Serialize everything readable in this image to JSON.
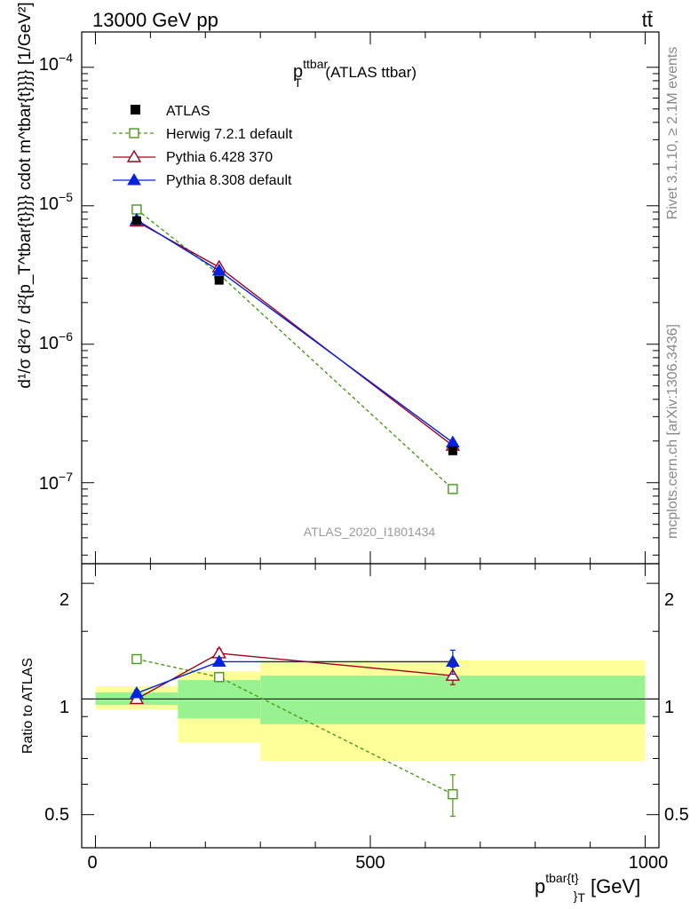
{
  "header": {
    "left": "13000 GeV pp",
    "right": "tt̄"
  },
  "side_labels": {
    "rivet": "Rivet 3.1.10, ≥ 2.1M events",
    "mcplots": "mcplots.cern.ch [arXiv:1306.3436]"
  },
  "main_title": {
    "base": "p",
    "sup": "ttbar",
    "sub": "T",
    "rest": " (ATLAS ttbar)"
  },
  "analysis_id": "ATLAS_2020_I1801434",
  "y_axis_main": {
    "label": "d¹/σ d²σ / d²{p_T^tbar{t}}}} cdot m^tbar{t}}}} [1/GeV²]",
    "tick_labels": [
      {
        "base": "10",
        "exp": "−4",
        "value": 0.0001
      },
      {
        "base": "10",
        "exp": "−5",
        "value": 1e-05
      },
      {
        "base": "10",
        "exp": "−6",
        "value": 1e-06
      },
      {
        "base": "10",
        "exp": "−7",
        "value": 1e-07
      }
    ]
  },
  "y_axis_ratio": {
    "label": "Ratio to ATLAS",
    "tick_labels": [
      {
        "text": "2",
        "value": 2
      },
      {
        "text": "1",
        "value": 1
      },
      {
        "text": "0.5",
        "value": 0.5
      }
    ]
  },
  "x_axis": {
    "label_base": "p",
    "label_sup": "tbar{t}",
    "label_sub": "}",
    "label_sub2": "T",
    "label_unit": " [GeV]",
    "tick_labels": [
      {
        "text": "0",
        "value": 0
      },
      {
        "text": "500",
        "value": 500
      },
      {
        "text": "1000",
        "value": 1000
      }
    ]
  },
  "chart_data": [
    {
      "panel": "main",
      "type": "line",
      "title": "p_T^ttbar (ATLAS ttbar)",
      "xlabel": "p^tbar{t}}_T [GeV]",
      "ylabel": "d¹/σ d²σ / d²{p_T^tbar{t}}}} cdot m^tbar{t}}}} [1/GeV²]",
      "xlim": [
        -25,
        1025
      ],
      "ylim": [
        2.6e-08,
        0.00018
      ],
      "yscale": "log",
      "legend_position": "top-left",
      "series": [
        {
          "name": "ATLAS",
          "style": "data",
          "color": "#000000",
          "x": [
            75,
            225,
            650
          ],
          "y": [
            7.8e-06,
            2.9e-06,
            1.7e-07
          ],
          "err": [
            0.05,
            0.05,
            0.05
          ]
        },
        {
          "name": "Herwig 7.2.1 default",
          "style": "open-square-dashed",
          "color": "#4a9a1a",
          "x": [
            75,
            225,
            650
          ],
          "y": [
            9.4e-06,
            3.2e-06,
            9e-08
          ],
          "err": [
            0.02,
            0.03,
            0.08
          ]
        },
        {
          "name": "Pythia 6.428 370",
          "style": "open-triangle",
          "color": "#a0001e",
          "x": [
            75,
            225,
            650
          ],
          "y": [
            7.7e-06,
            3.6e-06,
            1.85e-07
          ],
          "err": [
            0.02,
            0.03,
            0.05
          ]
        },
        {
          "name": "Pythia 8.308 default",
          "style": "filled-triangle",
          "color": "#0022dd",
          "x": [
            75,
            225,
            650
          ],
          "y": [
            7.9e-06,
            3.4e-06,
            1.95e-07
          ],
          "err": [
            0.02,
            0.03,
            0.09
          ]
        }
      ]
    },
    {
      "panel": "ratio",
      "type": "line",
      "xlabel": "p^tbar{t}}_T [GeV]",
      "ylabel": "Ratio to ATLAS",
      "xlim": [
        -25,
        1025
      ],
      "ylim": [
        0.41,
        2.25
      ],
      "yscale": "log",
      "bands": [
        {
          "x0": 0,
          "x1": 150,
          "yellow": [
            0.94,
            1.08
          ],
          "green": [
            0.965,
            1.04
          ]
        },
        {
          "x0": 150,
          "x1": 300,
          "yellow": [
            0.77,
            1.18
          ],
          "green": [
            0.89,
            1.12
          ]
        },
        {
          "x0": 300,
          "x1": 1000,
          "yellow": [
            0.69,
            1.26
          ],
          "green": [
            0.86,
            1.15
          ]
        }
      ],
      "series": [
        {
          "name": "Herwig 7.2.1 default",
          "x": [
            75,
            225,
            650
          ],
          "y": [
            1.27,
            1.14,
            0.565
          ],
          "err": [
            0.015,
            0.03,
            0.07
          ]
        },
        {
          "name": "Pythia 6.428 370",
          "x": [
            75,
            225,
            650
          ],
          "y": [
            1.0,
            1.315,
            1.15
          ],
          "err": [
            0.015,
            0.035,
            0.06
          ]
        },
        {
          "name": "Pythia 8.308 default",
          "x": [
            75,
            225,
            650
          ],
          "y": [
            1.035,
            1.25,
            1.25
          ],
          "err": [
            0.02,
            0.03,
            0.09
          ]
        }
      ]
    }
  ]
}
